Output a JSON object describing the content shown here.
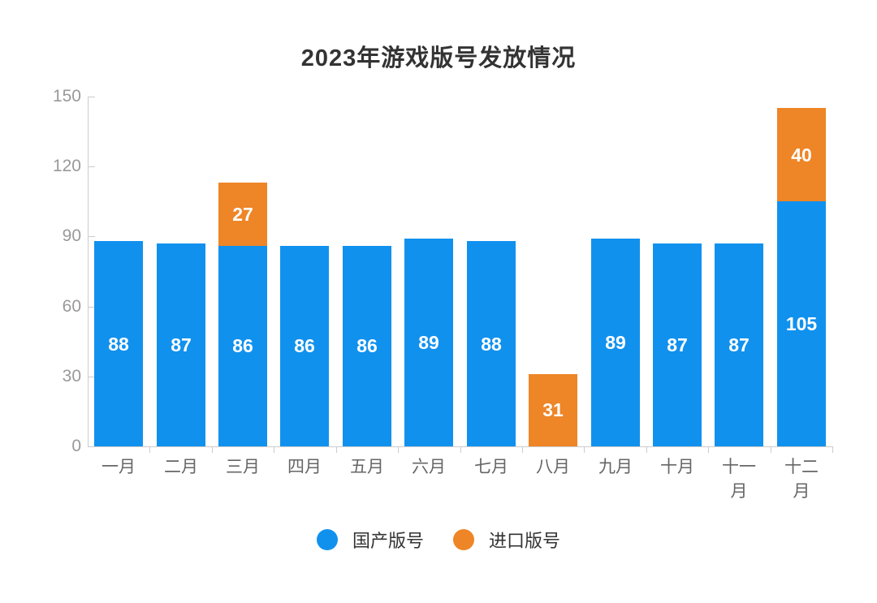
{
  "chart_data": {
    "type": "bar",
    "stacked": true,
    "title": "2023年游戏版号发放情况",
    "categories": [
      "一月",
      "二月",
      "三月",
      "四月",
      "五月",
      "六月",
      "七月",
      "八月",
      "九月",
      "十月",
      "十一月",
      "十二月"
    ],
    "series": [
      {
        "name": "国产版号",
        "color": "#1191EE",
        "values": [
          88,
          87,
          86,
          86,
          86,
          89,
          88,
          0,
          89,
          87,
          87,
          105
        ]
      },
      {
        "name": "进口版号",
        "color": "#EE8526",
        "values": [
          0,
          0,
          27,
          0,
          0,
          0,
          0,
          31,
          0,
          0,
          0,
          40
        ]
      }
    ],
    "ylim": [
      0,
      150
    ],
    "yticks": [
      0,
      30,
      60,
      90,
      120,
      150
    ],
    "grid": false,
    "legend_position": "bottom",
    "xlabel": "",
    "ylabel": ""
  },
  "styles": {
    "background": "#ffffff",
    "axis_color": "#cccccc",
    "y_label_color": "#999999",
    "x_label_color": "#666666",
    "title_color": "#333333",
    "bar_label_color": "#ffffff"
  }
}
